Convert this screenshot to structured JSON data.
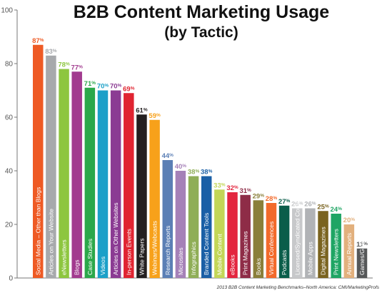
{
  "chart_data": {
    "type": "bar",
    "title": "B2B Content Marketing Usage",
    "subtitle": "(by Tactic)",
    "source": "2013 B2B Content Marketing Benchmarks–North America: CMI/MarketingProfs",
    "value_suffix": "%",
    "ylim": [
      0,
      100
    ],
    "yticks": [
      "0",
      "20",
      "40",
      "60",
      "80",
      "100"
    ],
    "grid": false,
    "categories": [
      "Social Media – Other than Blogs",
      "Articles on Your Website",
      "eNewsletters",
      "Blogs",
      "Case Studies",
      "Videos",
      "Articles on Other Websites",
      "In-person Events",
      "White Papers",
      "Webinars/Webcasts",
      "Research Reports",
      "Microsites",
      "Infographics",
      "Branded Content Tools",
      "Mobile Content",
      "eBooks",
      "Print Magazines",
      "Books",
      "Virtual Conferences",
      "Podcasts",
      "Licensed/Syndicated Content",
      "Mobile Apps",
      "Digital Magazines",
      "Print Newsletters",
      "Annual Reports",
      "Games/Gamification"
    ],
    "values": [
      87,
      83,
      78,
      77,
      71,
      70,
      70,
      69,
      61,
      59,
      44,
      40,
      38,
      38,
      33,
      32,
      31,
      29,
      28,
      27,
      26,
      26,
      25,
      24,
      20,
      11
    ],
    "colors": [
      "#ee5a24",
      "#a7a9ac",
      "#8dc63f",
      "#a23b8f",
      "#2ba84a",
      "#1ba0c8",
      "#8b3b93",
      "#e02431",
      "#231f20",
      "#f7a11a",
      "#5b7fb5",
      "#a581b8",
      "#8fae57",
      "#1a5fa6",
      "#c3d657",
      "#e3263f",
      "#8e2c47",
      "#8a7f3a",
      "#f26a2b",
      "#0a5d4a",
      "#c7c8ca",
      "#b1b3b6",
      "#7a6320",
      "#1fa564",
      "#e2b07d",
      "#565859"
    ]
  }
}
